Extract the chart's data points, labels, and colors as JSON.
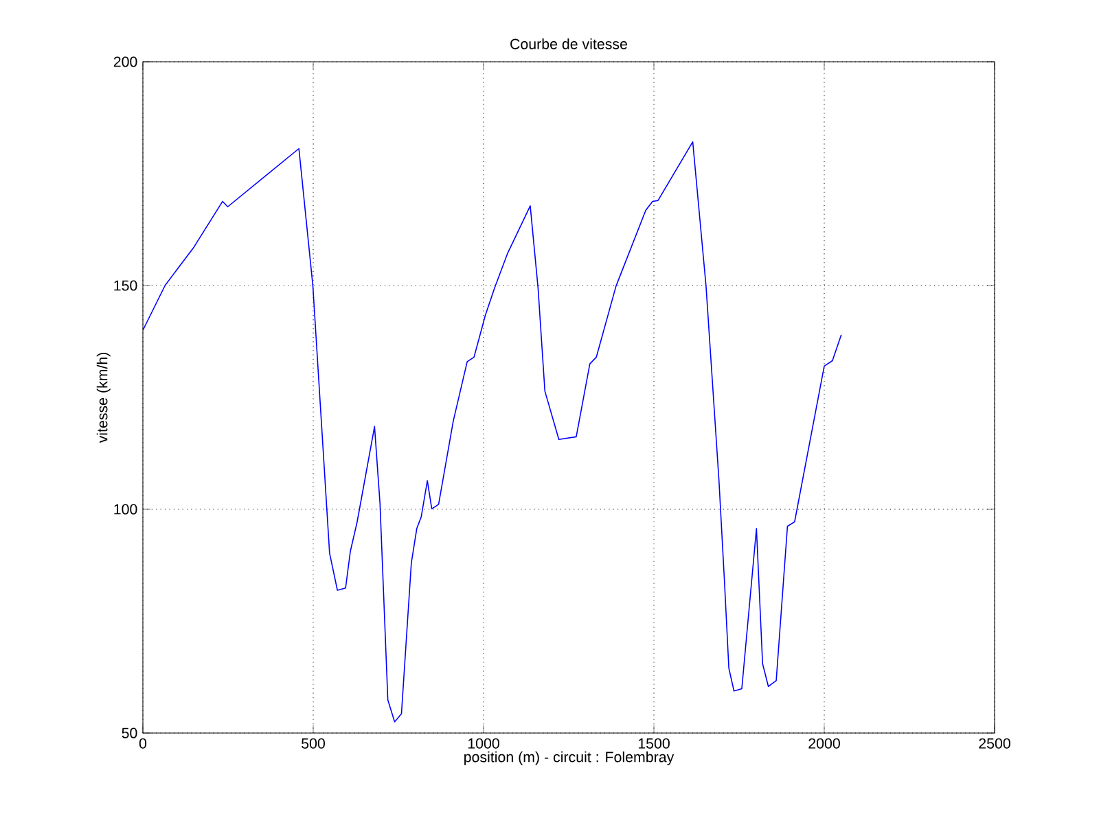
{
  "chart_data": {
    "type": "line",
    "title": "Courbe de vitesse",
    "xlabel": "position (m) - circuit : Folembray",
    "ylabel": "vitesse (km/h)",
    "x": [
      0,
      65,
      150,
      234,
      249,
      458,
      499,
      528,
      548,
      571,
      595,
      609,
      629,
      680,
      696,
      719,
      739,
      759,
      788,
      804,
      817,
      835,
      848,
      868,
      911,
      952,
      972,
      1005,
      1032,
      1070,
      1137,
      1160,
      1180,
      1221,
      1272,
      1312,
      1331,
      1389,
      1476,
      1496,
      1512,
      1614,
      1653,
      1691,
      1707,
      1720,
      1735,
      1758,
      1801,
      1819,
      1836,
      1859,
      1892,
      1913,
      2000,
      2024,
      2050
    ],
    "series": [
      {
        "color": "#0000ff",
        "values": [
          140,
          150,
          158.6,
          168.8,
          167.6,
          180.6,
          149.9,
          114.6,
          90.2,
          81.9,
          82.4,
          90.6,
          97.2,
          118.5,
          101.3,
          57.4,
          52.5,
          54.3,
          88,
          95.7,
          98.3,
          106.4,
          100.1,
          101.1,
          119.7,
          133,
          134,
          143.3,
          149.4,
          157.1,
          167.8,
          149.4,
          126.4,
          115.6,
          116.2,
          132.5,
          134,
          149.9,
          166.8,
          168.8,
          169,
          182.1,
          149.9,
          106.4,
          84,
          64.5,
          59.4,
          59.9,
          95.7,
          65.5,
          60.4,
          61.7,
          96.2,
          97.2,
          132,
          133.2,
          139
        ]
      }
    ],
    "xlim": [
      0,
      2500
    ],
    "ylim": [
      50,
      200
    ],
    "xticks": [
      0,
      500,
      1000,
      1500,
      2000,
      2500
    ],
    "yticks": [
      50,
      100,
      150,
      200
    ],
    "grid": true,
    "marker": "none",
    "line_style": "solid"
  }
}
